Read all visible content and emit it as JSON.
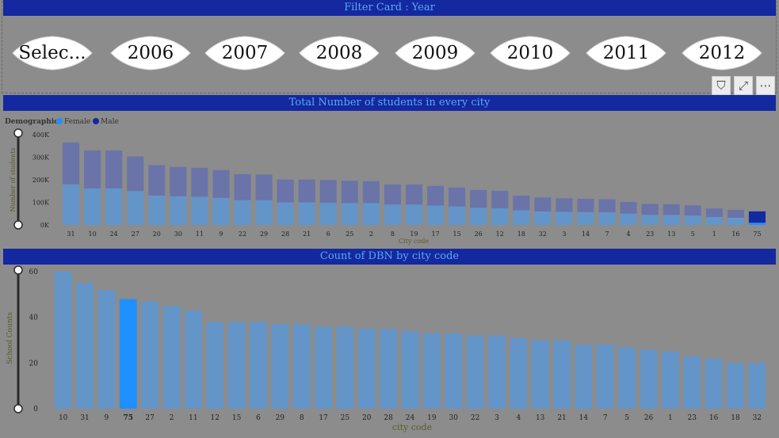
{
  "filter_card": {
    "title": "Filter Card : Year",
    "options": [
      "Selec...",
      "2006",
      "2007",
      "2008",
      "2009",
      "2010",
      "2011",
      "2012"
    ]
  },
  "visual_tools": [
    {
      "name": "filter-icon",
      "glyph": "⛉"
    },
    {
      "name": "focus-mode-icon",
      "glyph": "⤢"
    },
    {
      "name": "more-options-icon",
      "glyph": "⋯"
    }
  ],
  "colors": {
    "title_bg": "#1428a0",
    "title_text": "#5aaaf5",
    "female": "#6495c8",
    "male": "#6a74a8",
    "highlight_female": "#1e90ff",
    "highlight_male": "#1428a0",
    "bar": "#6495c8",
    "bar_highlight": "#1e90ff"
  },
  "chart_data": [
    {
      "type": "bar",
      "stacked": true,
      "title": "Total Number of students in every city",
      "legend_title": "Demographic",
      "legend_position": "top-left",
      "xlabel": "City code",
      "ylabel": "Number of students",
      "ylim": [
        0,
        400000
      ],
      "yticks": [
        "0K",
        "100K",
        "200K",
        "300K",
        "400K"
      ],
      "categories": [
        "31",
        "10",
        "24",
        "27",
        "20",
        "30",
        "11",
        "9",
        "22",
        "29",
        "28",
        "21",
        "6",
        "25",
        "2",
        "8",
        "19",
        "17",
        "15",
        "26",
        "12",
        "18",
        "32",
        "3",
        "14",
        "7",
        "4",
        "23",
        "13",
        "5",
        "1",
        "16",
        "75"
      ],
      "series": [
        {
          "name": "Female",
          "values": [
            180000,
            162000,
            162000,
            150000,
            130000,
            127000,
            125000,
            120000,
            110000,
            110000,
            100000,
            100000,
            98000,
            97000,
            97000,
            90000,
            90000,
            86000,
            82000,
            76000,
            74000,
            65000,
            60000,
            58000,
            57000,
            56000,
            50000,
            45000,
            45000,
            42000,
            35000,
            32000,
            10000
          ]
        },
        {
          "name": "Male",
          "values": [
            185000,
            168000,
            168000,
            153000,
            135000,
            130000,
            128000,
            123000,
            115000,
            113000,
            101000,
            101000,
            101000,
            99000,
            97000,
            89000,
            89000,
            87000,
            84000,
            79000,
            77000,
            65000,
            62000,
            60000,
            59000,
            58000,
            52000,
            48000,
            47000,
            45000,
            38000,
            35000,
            50000
          ]
        }
      ],
      "highlighted_category": "75"
    },
    {
      "type": "bar",
      "title": "Count of DBN by city code",
      "xlabel": "city code",
      "ylabel": "School Counts",
      "ylim": [
        0,
        60
      ],
      "yticks": [
        "0",
        "20",
        "40",
        "60"
      ],
      "categories": [
        "10",
        "31",
        "9",
        "75",
        "27",
        "2",
        "11",
        "12",
        "15",
        "6",
        "29",
        "8",
        "17",
        "25",
        "20",
        "28",
        "24",
        "19",
        "30",
        "22",
        "3",
        "4",
        "13",
        "21",
        "14",
        "7",
        "5",
        "26",
        "1",
        "23",
        "16",
        "18",
        "32"
      ],
      "values": [
        60,
        55,
        52,
        48,
        47,
        45,
        43,
        38,
        38,
        38,
        37,
        37,
        36,
        36,
        35,
        35,
        34,
        33,
        33,
        32,
        32,
        31,
        30,
        30,
        28,
        28,
        27,
        26,
        25,
        23,
        22,
        20,
        20
      ],
      "highlighted_category": "75"
    }
  ]
}
